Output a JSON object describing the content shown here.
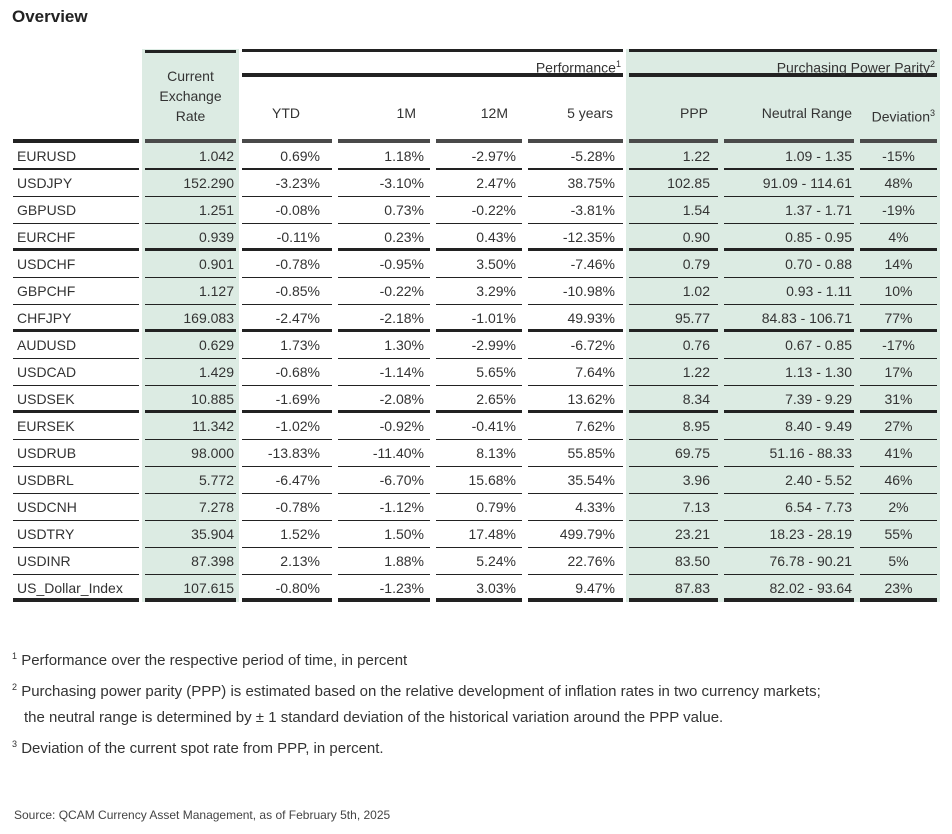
{
  "title": "Overview",
  "headers": {
    "rate": [
      "Current",
      "Exchange",
      "Rate"
    ],
    "performance": "Performance",
    "performance_sup": "1",
    "ppp_group": "Purchasing Power Parity",
    "ppp_group_sup": "2",
    "ytd": "YTD",
    "m1": "1M",
    "m12": "12M",
    "y5": "5 years",
    "ppp": "PPP",
    "neutral": "Neutral Range",
    "deviation": "Deviation",
    "deviation_sup": "3"
  },
  "rows": [
    [
      "EURUSD",
      "1.042",
      "0.69%",
      "1.18%",
      "-2.97%",
      "-5.28%",
      "1.22",
      "1.09 - 1.35",
      "-15%"
    ],
    [
      "USDJPY",
      "152.290",
      "-3.23%",
      "-3.10%",
      "2.47%",
      "38.75%",
      "102.85",
      "91.09 - 114.61",
      "48%"
    ],
    [
      "GBPUSD",
      "1.251",
      "-0.08%",
      "0.73%",
      "-0.22%",
      "-3.81%",
      "1.54",
      "1.37 - 1.71",
      "-19%"
    ],
    [
      "EURCHF",
      "0.939",
      "-0.11%",
      "0.23%",
      "0.43%",
      "-12.35%",
      "0.90",
      "0.85 - 0.95",
      "4%"
    ],
    [
      "USDCHF",
      "0.901",
      "-0.78%",
      "-0.95%",
      "3.50%",
      "-7.46%",
      "0.79",
      "0.70 - 0.88",
      "14%"
    ],
    [
      "GBPCHF",
      "1.127",
      "-0.85%",
      "-0.22%",
      "3.29%",
      "-10.98%",
      "1.02",
      "0.93 - 1.11",
      "10%"
    ],
    [
      "CHFJPY",
      "169.083",
      "-2.47%",
      "-2.18%",
      "-1.01%",
      "49.93%",
      "95.77",
      "84.83 - 106.71",
      "77%"
    ],
    [
      "AUDUSD",
      "0.629",
      "1.73%",
      "1.30%",
      "-2.99%",
      "-6.72%",
      "0.76",
      "0.67 - 0.85",
      "-17%"
    ],
    [
      "USDCAD",
      "1.429",
      "-0.68%",
      "-1.14%",
      "5.65%",
      "7.64%",
      "1.22",
      "1.13 - 1.30",
      "17%"
    ],
    [
      "USDSEK",
      "10.885",
      "-1.69%",
      "-2.08%",
      "2.65%",
      "13.62%",
      "8.34",
      "7.39 - 9.29",
      "31%"
    ],
    [
      "EURSEK",
      "11.342",
      "-1.02%",
      "-0.92%",
      "-0.41%",
      "7.62%",
      "8.95",
      "8.40 - 9.49",
      "27%"
    ],
    [
      "USDRUB",
      "98.000",
      "-13.83%",
      "-11.40%",
      "8.13%",
      "55.85%",
      "69.75",
      "51.16 - 88.33",
      "41%"
    ],
    [
      "USDBRL",
      "5.772",
      "-6.47%",
      "-6.70%",
      "15.68%",
      "35.54%",
      "3.96",
      "2.40 - 5.52",
      "46%"
    ],
    [
      "USDCNH",
      "7.278",
      "-0.78%",
      "-1.12%",
      "0.79%",
      "4.33%",
      "7.13",
      "6.54 - 7.73",
      "2%"
    ],
    [
      "USDTRY",
      "35.904",
      "1.52%",
      "1.50%",
      "17.48%",
      "499.79%",
      "23.21",
      "18.23 - 28.19",
      "55%"
    ],
    [
      "USDINR",
      "87.398",
      "2.13%",
      "1.88%",
      "5.24%",
      "22.76%",
      "83.50",
      "76.78 - 90.21",
      "5%"
    ],
    [
      "US_Dollar_Index",
      "107.615",
      "-0.80%",
      "-1.23%",
      "3.03%",
      "9.47%",
      "87.83",
      "82.02 - 93.64",
      "23%"
    ]
  ],
  "notes": [
    {
      "sup": "1",
      "text": "Performance over the respective period of time, in percent"
    },
    {
      "sup": "2",
      "text": "Purchasing power parity (PPP) is estimated based on the relative development of inflation rates in two currency markets;"
    },
    {
      "sup": "",
      "text": "the neutral range is determined by ± 1 standard deviation of the historical variation around the PPP value."
    },
    {
      "sup": "3",
      "text": "Deviation of the current spot rate from PPP, in percent."
    }
  ],
  "source": "Source: QCAM Currency Asset Management, as of February 5th, 2025",
  "colors": {
    "highlight": "#dcebe3",
    "rule": "#222222"
  }
}
